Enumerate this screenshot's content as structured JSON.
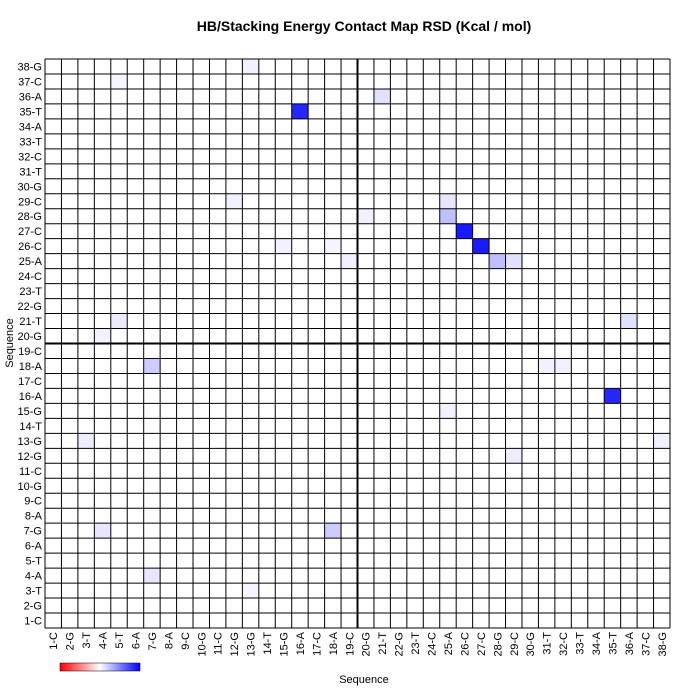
{
  "chart_data": {
    "type": "heatmap",
    "title": "HB/Stacking Energy Contact Map RSD (Kcal / mol)",
    "x_label": "Sequence",
    "y_label": "Sequence",
    "categories": [
      "1-C",
      "2-G",
      "3-T",
      "4-A",
      "5-T",
      "6-A",
      "7-G",
      "8-A",
      "9-C",
      "10-G",
      "11-C",
      "12-G",
      "13-G",
      "14-T",
      "15-G",
      "16-A",
      "17-C",
      "18-A",
      "19-C",
      "20-G",
      "21-T",
      "22-G",
      "23-T",
      "24-C",
      "25-A",
      "26-C",
      "27-C",
      "28-G",
      "29-C",
      "30-G",
      "31-T",
      "32-C",
      "33-T",
      "34-A",
      "35-T",
      "36-A",
      "37-C",
      "38-G"
    ],
    "zlim": [
      -1,
      1
    ],
    "low_color": "#ff0000",
    "mid_color": "#ffffff",
    "high_color": "#0000ff",
    "cells": [
      {
        "x": "16-A",
        "y": "35-T",
        "value": 0.85
      },
      {
        "x": "35-T",
        "y": "16-A",
        "value": 0.85
      },
      {
        "x": "26-C",
        "y": "27-C",
        "value": 0.9
      },
      {
        "x": "27-C",
        "y": "26-C",
        "value": 0.9
      },
      {
        "x": "25-A",
        "y": "28-G",
        "value": 0.25
      },
      {
        "x": "25-A",
        "y": "29-C",
        "value": 0.1
      },
      {
        "x": "28-G",
        "y": "25-A",
        "value": 0.25
      },
      {
        "x": "29-C",
        "y": "25-A",
        "value": 0.12
      },
      {
        "x": "7-G",
        "y": "18-A",
        "value": 0.2
      },
      {
        "x": "18-A",
        "y": "7-G",
        "value": 0.2
      },
      {
        "x": "4-A",
        "y": "7-G",
        "value": 0.1
      },
      {
        "x": "7-G",
        "y": "4-A",
        "value": 0.1
      },
      {
        "x": "21-T",
        "y": "36-A",
        "value": 0.12
      },
      {
        "x": "36-A",
        "y": "21-T",
        "value": 0.12
      },
      {
        "x": "5-T",
        "y": "21-T",
        "value": 0.08
      },
      {
        "x": "19-C",
        "y": "25-A",
        "value": 0.06
      },
      {
        "x": "12-G",
        "y": "29-C",
        "value": 0.05
      },
      {
        "x": "20-G",
        "y": "28-G",
        "value": 0.05
      },
      {
        "x": "3-T",
        "y": "13-G",
        "value": 0.07
      },
      {
        "x": "38-G",
        "y": "13-G",
        "value": 0.06
      },
      {
        "x": "29-C",
        "y": "12-G",
        "value": 0.07
      },
      {
        "x": "5-T",
        "y": "37-C",
        "value": 0.04
      },
      {
        "x": "13-G",
        "y": "38-G",
        "value": 0.05
      },
      {
        "x": "13-G",
        "y": "3-T",
        "value": 0.04
      },
      {
        "x": "31-T",
        "y": "18-A",
        "value": 0.05
      },
      {
        "x": "32-C",
        "y": "18-A",
        "value": 0.05
      },
      {
        "x": "25-A",
        "y": "15-G",
        "value": 0.05
      },
      {
        "x": "15-G",
        "y": "26-C",
        "value": 0.05
      },
      {
        "x": "18-A",
        "y": "26-C",
        "value": 0.04
      },
      {
        "x": "4-A",
        "y": "20-G",
        "value": 0.05
      }
    ]
  }
}
